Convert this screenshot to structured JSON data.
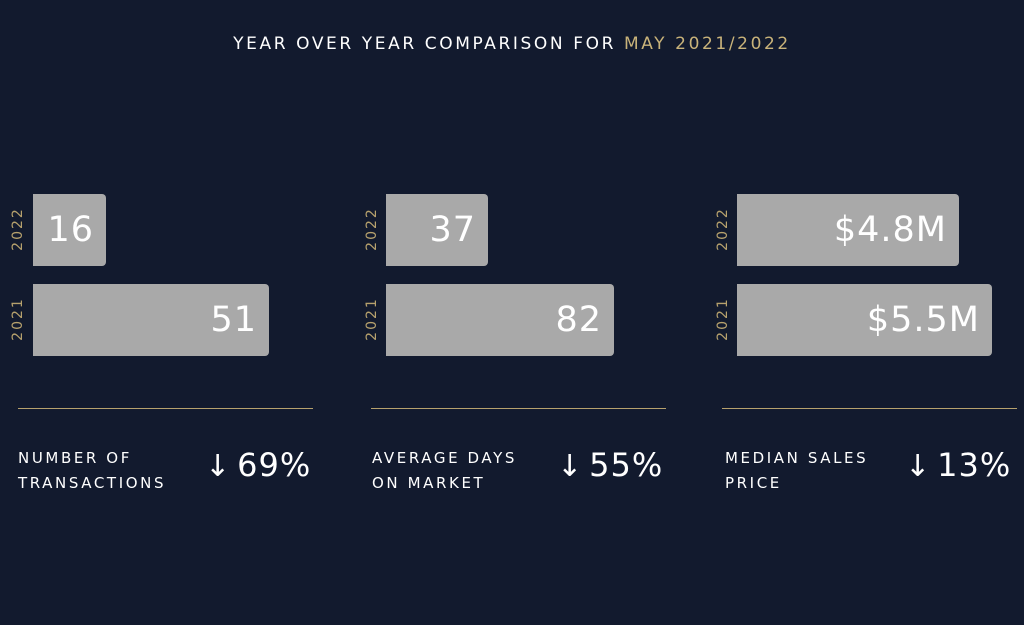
{
  "title": {
    "prefix": "YEAR OVER YEAR COMPARISON FOR",
    "highlight": "MAY 2021/2022"
  },
  "colors": {
    "background": "#121a2e",
    "bar": "#a9a9a9",
    "accent": "#c9b37a",
    "text": "#ffffff"
  },
  "chart_data": [
    {
      "type": "bar",
      "categories": [
        "2022",
        "2021"
      ],
      "values": [
        16,
        51
      ],
      "value_labels": [
        "16",
        "51"
      ],
      "metric_line1": "NUMBER OF",
      "metric_line2": "TRANSACTIONS",
      "change_icon": "down-arrow-icon",
      "change_arrow": "↓",
      "change": "69%"
    },
    {
      "type": "bar",
      "categories": [
        "2022",
        "2021"
      ],
      "values": [
        37,
        82
      ],
      "value_labels": [
        "37",
        "82"
      ],
      "metric_line1": "AVERAGE DAYS",
      "metric_line2": "ON MARKET",
      "change_icon": "down-arrow-icon",
      "change_arrow": "↓",
      "change": "55%"
    },
    {
      "type": "bar",
      "categories": [
        "2022",
        "2021"
      ],
      "values": [
        4.8,
        5.5
      ],
      "value_labels": [
        "$4.8M",
        "$5.5M"
      ],
      "metric_line1": "MEDIAN SALES",
      "metric_line2": "PRICE",
      "change_icon": "down-arrow-icon",
      "change_arrow": "↓",
      "change": "13%"
    }
  ]
}
